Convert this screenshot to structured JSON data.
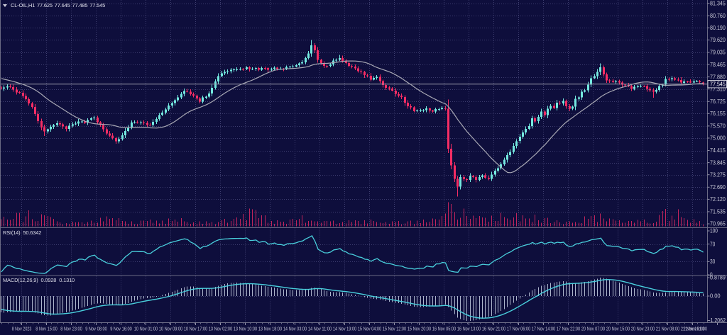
{
  "header": {
    "symbol": "CL-OIL,H1",
    "open": "77.625",
    "high": "77.645",
    "low": "77.485",
    "close": "77.545"
  },
  "price_axis": {
    "labels": [
      "81.345",
      "80.760",
      "80.190",
      "79.620",
      "79.035",
      "78.465",
      "77.880",
      "77.310",
      "76.725",
      "76.155",
      "75.570",
      "75.000",
      "74.415",
      "73.845",
      "73.275",
      "72.690",
      "72.120",
      "71.535",
      "70.965"
    ],
    "current": "77.545"
  },
  "rsi_panel": {
    "name": "RSI(14)",
    "value": "50.6342",
    "axis": [
      "100",
      "70",
      "30",
      "0"
    ],
    "levels": [
      70,
      30
    ]
  },
  "macd_panel": {
    "name": "MACD(12,26,9)",
    "macd_value": "0.0928",
    "signal_value": "0.1310",
    "axis_top": "0.8789",
    "axis_zero": "0.00",
    "axis_bottom": "-1.2062"
  },
  "time_axis": {
    "labels": [
      "8 Nov 2023",
      "8 Nov 15:00",
      "8 Nov 23:00",
      "9 Nov 08:00",
      "9 Nov 16:00",
      "10 Nov 01:00",
      "10 Nov 09:00",
      "10 Nov 17:00",
      "13 Nov 02:00",
      "13 Nov 10:00",
      "13 Nov 18:00",
      "14 Nov 03:00",
      "14 Nov 11:00",
      "14 Nov 19:00",
      "15 Nov 04:00",
      "15 Nov 12:00",
      "15 Nov 20:00",
      "16 Nov 05:00",
      "16 Nov 13:00",
      "16 Nov 21:00",
      "17 Nov 06:00",
      "17 Nov 14:00",
      "17 Nov 22:00",
      "20 Nov 07:00",
      "20 Nov 15:00",
      "20 Nov 23:00",
      "21 Nov 08:00",
      "21 Nov 16:00",
      "22 Nov 01:00"
    ]
  },
  "colors": {
    "background": "#0e0e3c",
    "grid": "#3e3e70",
    "bull": "#74e9e0",
    "bear": "#f62d64",
    "volume": "#c2255c",
    "ma_line": "#a8a8b4",
    "rsi_line": "#49cfdc",
    "macd_signal": "#49cfdc",
    "macd_histogram": "#adb5cc",
    "text": "#d4d4e2",
    "axis_text": "#c8c8d6",
    "divider": "#6a6a84",
    "price_line": "#9898a8",
    "price_tag_border": "#c8c8d4",
    "price_tag_text": "#ffffff"
  },
  "chart_data": {
    "type": "candlestick",
    "symbol": "CL-OIL",
    "timeframe": "H1",
    "price_range": [
      70.965,
      81.345
    ],
    "bars_visible": 227,
    "close_anchors": [
      [
        0,
        77.35
      ],
      [
        2,
        77.48
      ],
      [
        6,
        77.1
      ],
      [
        10,
        76.5
      ],
      [
        12,
        75.8
      ],
      [
        14,
        75.28
      ],
      [
        16,
        75.55
      ],
      [
        18,
        75.7
      ],
      [
        21,
        75.45
      ],
      [
        25,
        75.8
      ],
      [
        27,
        75.75
      ],
      [
        30,
        75.95
      ],
      [
        32,
        75.6
      ],
      [
        34,
        75.2
      ],
      [
        37,
        74.87
      ],
      [
        39,
        75.1
      ],
      [
        42,
        75.7
      ],
      [
        45,
        75.78
      ],
      [
        48,
        75.6
      ],
      [
        51,
        76.1
      ],
      [
        54,
        76.5
      ],
      [
        57,
        76.95
      ],
      [
        59,
        77.25
      ],
      [
        61,
        77.1
      ],
      [
        64,
        76.75
      ],
      [
        67,
        77.1
      ],
      [
        70,
        77.9
      ],
      [
        72,
        78.15
      ],
      [
        78,
        78.3
      ],
      [
        85,
        78.25
      ],
      [
        92,
        78.3
      ],
      [
        95,
        78.4
      ],
      [
        97,
        78.55
      ],
      [
        99,
        79.0
      ],
      [
        100,
        79.4
      ],
      [
        101,
        79.1
      ],
      [
        102,
        78.7
      ],
      [
        103,
        78.5
      ],
      [
        105,
        78.4
      ],
      [
        107,
        78.6
      ],
      [
        109,
        78.72
      ],
      [
        111,
        78.5
      ],
      [
        114,
        78.3
      ],
      [
        117,
        78.0
      ],
      [
        119,
        77.8
      ],
      [
        121,
        77.85
      ],
      [
        123,
        77.5
      ],
      [
        126,
        77.2
      ],
      [
        129,
        76.9
      ],
      [
        131,
        76.5
      ],
      [
        133,
        76.3
      ],
      [
        137,
        76.35
      ],
      [
        139,
        76.25
      ],
      [
        141,
        76.4
      ],
      [
        143,
        76.38
      ],
      [
        144,
        74.5
      ],
      [
        145,
        73.7
      ],
      [
        146,
        73.1
      ],
      [
        147,
        72.72
      ],
      [
        148,
        73.15
      ],
      [
        150,
        73.0
      ],
      [
        151,
        73.2
      ],
      [
        153,
        73.05
      ],
      [
        155,
        73.2
      ],
      [
        157,
        73.1
      ],
      [
        158,
        73.3
      ],
      [
        160,
        73.55
      ],
      [
        161,
        73.8
      ],
      [
        162,
        73.95
      ],
      [
        163,
        74.2
      ],
      [
        164,
        74.4
      ],
      [
        165,
        74.65
      ],
      [
        166,
        74.9
      ],
      [
        167,
        75.05
      ],
      [
        168,
        75.3
      ],
      [
        169,
        75.45
      ],
      [
        170,
        75.6
      ],
      [
        171,
        75.9
      ],
      [
        172,
        75.8
      ],
      [
        173,
        76.05
      ],
      [
        174,
        76.2
      ],
      [
        175,
        76.1
      ],
      [
        176,
        76.35
      ],
      [
        177,
        76.5
      ],
      [
        178,
        76.4
      ],
      [
        179,
        76.65
      ],
      [
        180,
        76.6
      ],
      [
        181,
        76.7
      ],
      [
        182,
        76.5
      ],
      [
        183,
        76.4
      ],
      [
        184,
        76.45
      ],
      [
        185,
        76.85
      ],
      [
        186,
        76.95
      ],
      [
        187,
        77.15
      ],
      [
        188,
        77.3
      ],
      [
        189,
        77.5
      ],
      [
        190,
        77.8
      ],
      [
        191,
        77.95
      ],
      [
        192,
        78.1
      ],
      [
        193,
        78.35
      ],
      [
        194,
        78.0
      ],
      [
        195,
        77.75
      ],
      [
        197,
        77.65
      ],
      [
        198,
        77.7
      ],
      [
        200,
        77.55
      ],
      [
        202,
        77.45
      ],
      [
        203,
        77.35
      ],
      [
        205,
        77.4
      ],
      [
        206,
        77.5
      ],
      [
        208,
        77.35
      ],
      [
        210,
        77.2
      ],
      [
        211,
        77.3
      ],
      [
        213,
        77.55
      ],
      [
        214,
        77.75
      ],
      [
        216,
        77.8
      ],
      [
        218,
        77.7
      ],
      [
        219,
        77.62
      ],
      [
        221,
        77.65
      ],
      [
        222,
        77.58
      ],
      [
        224,
        77.68
      ],
      [
        225,
        77.625
      ],
      [
        226,
        77.545
      ]
    ],
    "wick_overrides": [
      [
        14,
        "low",
        75.1
      ],
      [
        37,
        "low",
        74.73
      ],
      [
        100,
        "high",
        79.62
      ],
      [
        109,
        "high",
        78.92
      ],
      [
        144,
        "low",
        74.3
      ],
      [
        147,
        "low",
        72.25
      ],
      [
        193,
        "high",
        78.52
      ],
      [
        210,
        "low",
        76.9
      ]
    ],
    "last_candle": {
      "open": 77.625,
      "high": 77.645,
      "low": 77.485,
      "close": 77.545
    },
    "volume_envelope": [
      [
        0,
        13
      ],
      [
        7,
        19
      ],
      [
        12,
        21
      ],
      [
        18,
        9
      ],
      [
        25,
        7
      ],
      [
        31,
        11
      ],
      [
        37,
        15
      ],
      [
        42,
        7
      ],
      [
        51,
        9
      ],
      [
        58,
        11
      ],
      [
        63,
        6
      ],
      [
        68,
        9
      ],
      [
        77,
        13
      ],
      [
        81,
        28
      ],
      [
        84,
        15
      ],
      [
        91,
        7
      ],
      [
        98,
        15
      ],
      [
        101,
        11
      ],
      [
        109,
        7
      ],
      [
        119,
        9
      ],
      [
        128,
        7
      ],
      [
        137,
        9
      ],
      [
        141,
        18
      ],
      [
        144,
        36
      ],
      [
        146,
        30
      ],
      [
        148,
        24
      ],
      [
        152,
        16
      ],
      [
        155,
        11
      ],
      [
        160,
        15
      ],
      [
        163,
        21
      ],
      [
        167,
        19
      ],
      [
        171,
        17
      ],
      [
        175,
        11
      ],
      [
        180,
        9
      ],
      [
        185,
        13
      ],
      [
        190,
        15
      ],
      [
        193,
        17
      ],
      [
        196,
        11
      ],
      [
        201,
        7
      ],
      [
        206,
        9
      ],
      [
        210,
        11
      ],
      [
        213,
        19
      ],
      [
        215,
        25
      ],
      [
        218,
        21
      ],
      [
        222,
        13
      ],
      [
        226,
        8
      ]
    ],
    "indicators": [
      {
        "type": "SMA",
        "period": 20
      },
      {
        "type": "RSI",
        "period": 14,
        "current": 50.6342,
        "levels": [
          70,
          30
        ],
        "range": [
          0,
          100
        ]
      },
      {
        "type": "MACD",
        "fast": 12,
        "slow": 26,
        "signal": 9,
        "macd_current": 0.0928,
        "signal_current": 0.131,
        "display_max": 0.8789,
        "display_min": -1.2062
      }
    ]
  }
}
